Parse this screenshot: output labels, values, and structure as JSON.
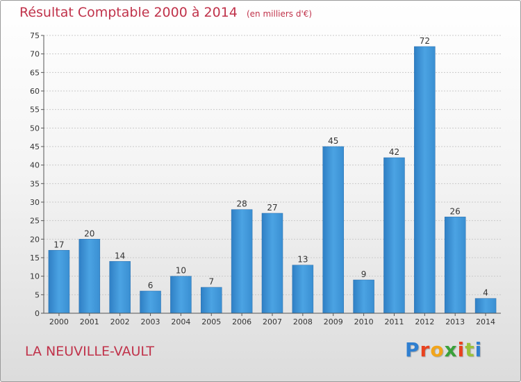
{
  "header": {
    "title": "Résultat Comptable 2000 à 2014",
    "unit_note": "(en milliers d'€)"
  },
  "footer": {
    "town": "LA NEUVILLE-VAULT",
    "logo": [
      "P",
      "r",
      "o",
      "x",
      "i",
      "t",
      "i"
    ]
  },
  "colors": {
    "bar": "#3f95d8",
    "bar_dark": "#2a78bb",
    "title": "#c0324a",
    "grid": "#c9c9c9"
  },
  "chart_data": {
    "type": "bar",
    "title": "Résultat Comptable 2000 à 2014",
    "categories": [
      "2000",
      "2001",
      "2002",
      "2003",
      "2004",
      "2005",
      "2006",
      "2007",
      "2008",
      "2009",
      "2010",
      "2011",
      "2012",
      "2013",
      "2014"
    ],
    "values": [
      17,
      20,
      14,
      6,
      10,
      7,
      28,
      27,
      13,
      45,
      9,
      42,
      72,
      26,
      4
    ],
    "ylim": [
      0,
      75
    ],
    "yticks": [
      0,
      5,
      10,
      15,
      20,
      25,
      30,
      35,
      40,
      45,
      50,
      55,
      60,
      65,
      70,
      75
    ],
    "grid": "horizontal",
    "data_labels": true
  }
}
